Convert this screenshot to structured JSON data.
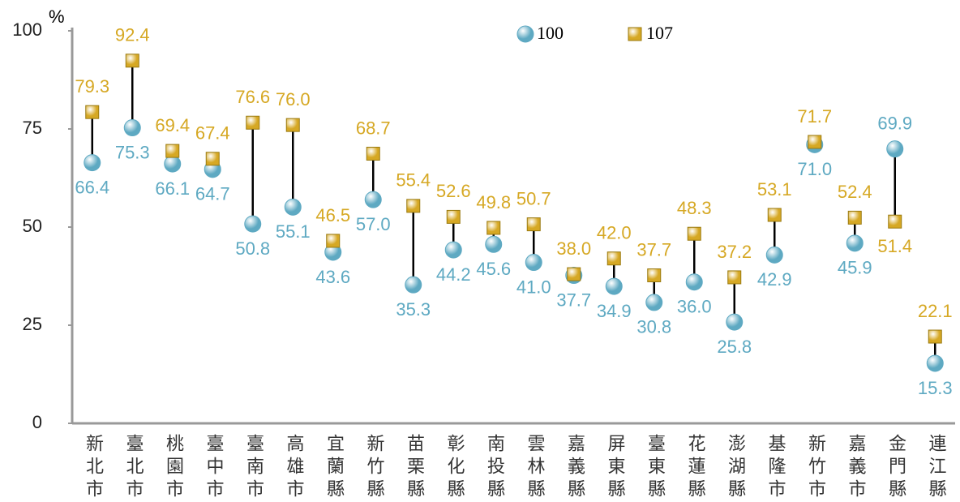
{
  "chart_data": {
    "type": "dumbbell",
    "unit": "%",
    "categories": [
      "新北市",
      "臺北市",
      "桃園市",
      "臺中市",
      "臺南市",
      "高雄市",
      "宜蘭縣",
      "新竹縣",
      "苗栗縣",
      "彰化縣",
      "南投縣",
      "雲林縣",
      "嘉義縣",
      "屏東縣",
      "臺東縣",
      "花蓮縣",
      "澎湖縣",
      "基隆市",
      "新竹市",
      "嘉義市",
      "金門縣",
      "連江縣"
    ],
    "series": [
      {
        "name": "100",
        "color": "#5ea9c2",
        "marker": "circle",
        "values": [
          66.4,
          75.3,
          66.1,
          64.7,
          50.8,
          55.1,
          43.6,
          57.0,
          35.3,
          44.2,
          45.6,
          41.0,
          37.7,
          34.9,
          30.8,
          36.0,
          25.8,
          42.9,
          71.0,
          45.9,
          69.9,
          15.3
        ],
        "value_labels": [
          "66.4",
          "75.3",
          "66.1",
          "64.7",
          "50.8",
          "55.1",
          "43.6",
          "57.0",
          "35.3",
          "44.2",
          "45.6",
          "41.0",
          "37.7",
          "34.9",
          "30.8",
          "36.0",
          "25.8",
          "42.9",
          "71.0",
          "45.9",
          "69.9",
          "15.3"
        ]
      },
      {
        "name": "107",
        "color": "#d6a824",
        "marker": "square",
        "values": [
          79.3,
          92.4,
          69.4,
          67.4,
          76.6,
          76.0,
          46.5,
          68.7,
          55.4,
          52.6,
          49.8,
          50.7,
          38.0,
          42.0,
          37.7,
          48.3,
          37.2,
          53.1,
          71.7,
          52.4,
          51.4,
          22.1
        ],
        "value_labels": [
          "79.3",
          "92.4",
          "69.4",
          "67.4",
          "76.6",
          "76.0",
          "46.5",
          "68.7",
          "55.4",
          "52.6",
          "49.8",
          "50.7",
          "38.0",
          "42.0",
          "37.7",
          "48.3",
          "37.2",
          "53.1",
          "71.7",
          "52.4",
          "51.4",
          "22.1"
        ]
      }
    ],
    "ylim": [
      0,
      100
    ],
    "yticks": [
      0,
      25,
      50,
      75,
      100
    ],
    "grid": false
  }
}
